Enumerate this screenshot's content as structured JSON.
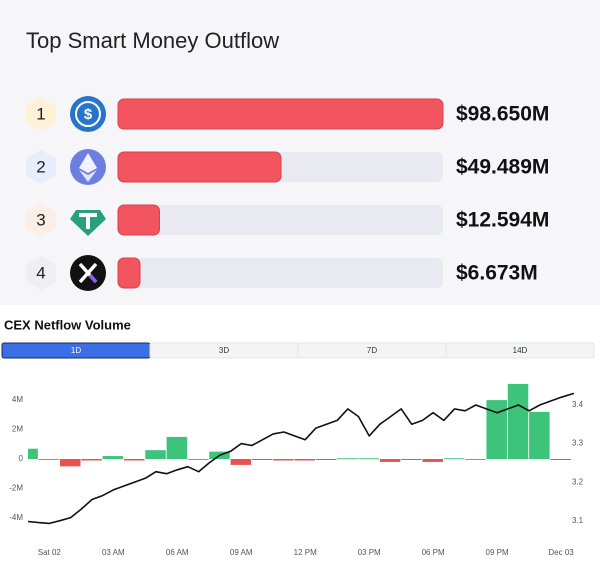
{
  "chart_data": [
    {
      "type": "hbar",
      "title": "Top Smart Money Outflow",
      "categories": [
        "1",
        "2",
        "3",
        "4"
      ],
      "values": [
        98.65,
        49.489,
        12.594,
        6.673
      ],
      "value_labels": [
        "$98.650M",
        "$49.489M",
        "$12.594M",
        "$6.673M"
      ],
      "color": "#f2555f",
      "track_color": "#e9e9f1"
    },
    {
      "type": "combo",
      "title": "CEX Netflow Volume",
      "tabs": [
        "1D",
        "3D",
        "7D",
        "14D"
      ],
      "selected_tab": "1D",
      "xlim": [
        -1,
        24.7
      ],
      "xticks": [
        {
          "value": 0,
          "label": "Sat 02"
        },
        {
          "value": 3,
          "label": "03 AM"
        },
        {
          "value": 6,
          "label": "06 AM"
        },
        {
          "value": 9,
          "label": "09 AM"
        },
        {
          "value": 12,
          "label": "12 PM"
        },
        {
          "value": 15,
          "label": "03 PM"
        },
        {
          "value": 18,
          "label": "06 PM"
        },
        {
          "value": 21,
          "label": "09 PM"
        },
        {
          "value": 24,
          "label": "Dec 03"
        }
      ],
      "ylim": [
        -5.5,
        5.5
      ],
      "yticks": [
        {
          "value": -4,
          "label": "-4M"
        },
        {
          "value": -2,
          "label": "-2M"
        },
        0,
        {
          "value": 2,
          "label": "2M"
        },
        {
          "value": 4,
          "label": "4M"
        }
      ],
      "y2lim": [
        3.05,
        3.47
      ],
      "y2ticks": [
        3.1,
        3.2,
        3.3,
        3.4
      ],
      "grid": false,
      "series": [
        {
          "type": "bar",
          "positive_color": "#3ec47a",
          "negative_color": "#e8524f",
          "x": [
            -1,
            0,
            1,
            2,
            3,
            4,
            5,
            6,
            7,
            8,
            9,
            10,
            11,
            12,
            13,
            14,
            15,
            16,
            17,
            18,
            19,
            20,
            21,
            22,
            23,
            24
          ],
          "values": [
            0.7,
            0,
            -0.5,
            -0.1,
            0.2,
            -0.1,
            0.6,
            1.5,
            0,
            0.5,
            -0.4,
            -0.05,
            -0.1,
            -0.1,
            -0.05,
            0.05,
            0.05,
            -0.2,
            -0.05,
            -0.2,
            0.05,
            0,
            4.0,
            5.1,
            3.2,
            -0.05
          ]
        },
        {
          "type": "line",
          "axis": "y2",
          "color": "#111111",
          "x": [
            -1,
            -0.5,
            0,
            0.5,
            1,
            1.5,
            2,
            2.5,
            3,
            3.5,
            4,
            4.5,
            5,
            5.5,
            6,
            6.5,
            7,
            7.5,
            8,
            8.5,
            9,
            9.5,
            10,
            10.5,
            11,
            11.5,
            12,
            12.5,
            13,
            13.5,
            14,
            14.5,
            15,
            15.5,
            16,
            16.5,
            17,
            17.5,
            18,
            18.5,
            19,
            19.5,
            20,
            20.5,
            21,
            21.5,
            22,
            22.5,
            23,
            23.5,
            24,
            24.6
          ],
          "values": [
            3.098,
            3.095,
            3.093,
            3.1,
            3.108,
            3.13,
            3.155,
            3.165,
            3.18,
            3.19,
            3.2,
            3.21,
            3.227,
            3.222,
            3.232,
            3.24,
            3.227,
            3.25,
            3.27,
            3.28,
            3.3,
            3.295,
            3.31,
            3.325,
            3.33,
            3.32,
            3.31,
            3.34,
            3.35,
            3.36,
            3.39,
            3.37,
            3.32,
            3.35,
            3.37,
            3.39,
            3.35,
            3.36,
            3.38,
            3.36,
            3.39,
            3.385,
            3.4,
            3.39,
            3.38,
            3.39,
            3.4,
            3.385,
            3.4,
            3.41,
            3.42,
            3.43
          ]
        }
      ]
    }
  ]
}
